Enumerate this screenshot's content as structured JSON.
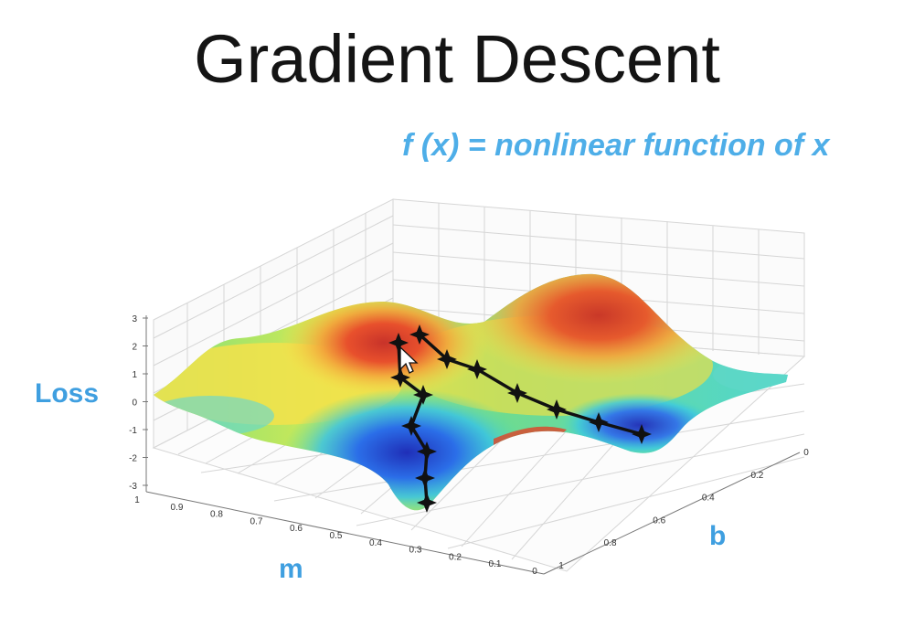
{
  "slide": {
    "title": "Gradient Descent",
    "formula": "f (x) = nonlinear function of x"
  },
  "axes": {
    "z_label": "Loss",
    "x_label": "m",
    "y_label": "b",
    "z_ticks": [
      "3",
      "2",
      "1",
      "0",
      "-1",
      "-2",
      "-3"
    ],
    "m_ticks": [
      "1",
      "0.9",
      "0.8",
      "0.7",
      "0.6",
      "0.5",
      "0.4",
      "0.3",
      "0.2",
      "0.1",
      "0"
    ],
    "b_ticks": [
      "0",
      "0.2",
      "0.4",
      "0.6",
      "0.8",
      "1"
    ]
  },
  "colors": {
    "title": "#141414",
    "accent": "#4eaee8",
    "path": "#111111"
  },
  "icons": {
    "cursor": "mouse-pointer-icon",
    "step_marker": "star-marker-icon"
  }
}
